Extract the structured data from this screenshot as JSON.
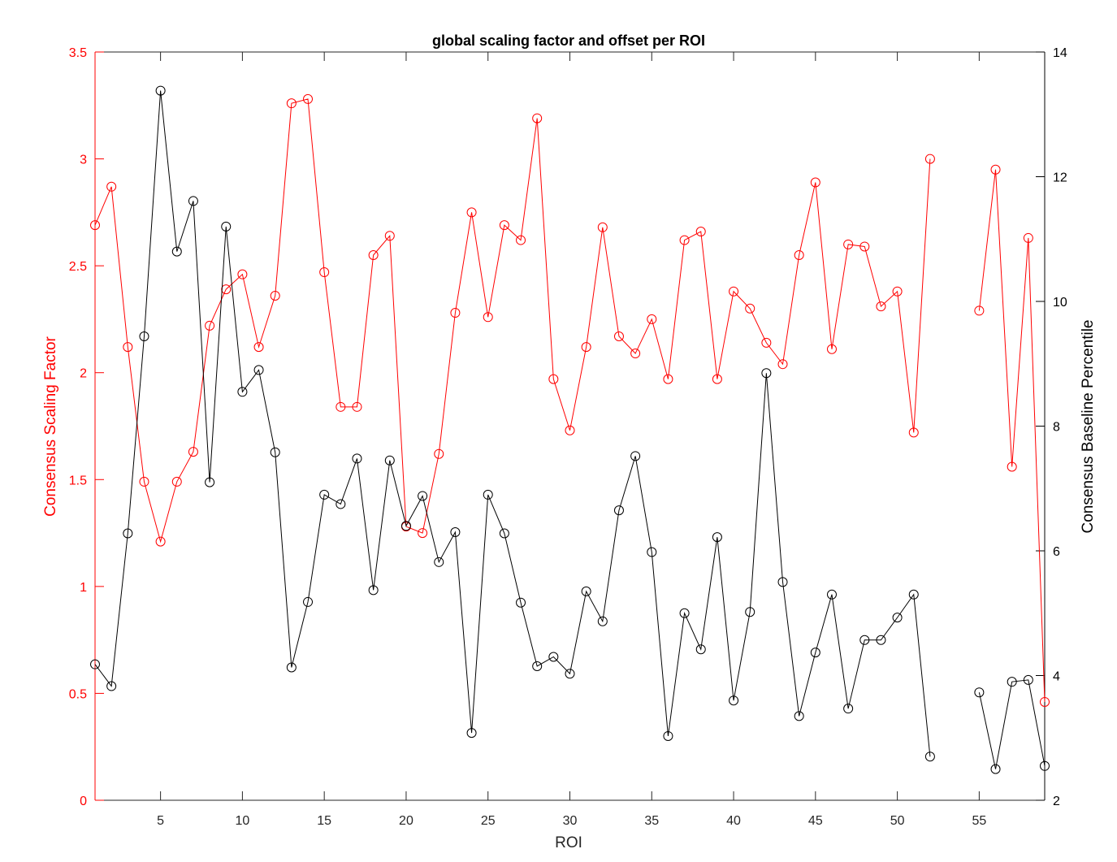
{
  "chart_data": {
    "type": "line",
    "title": "global scaling factor and offset per ROI",
    "xlabel": "ROI",
    "xlim": [
      1,
      59
    ],
    "x_ticks": [
      5,
      10,
      15,
      20,
      25,
      30,
      35,
      40,
      45,
      50,
      55
    ],
    "x": [
      1,
      2,
      3,
      4,
      5,
      6,
      7,
      8,
      9,
      10,
      11,
      12,
      13,
      14,
      15,
      16,
      17,
      18,
      19,
      20,
      21,
      22,
      23,
      24,
      25,
      26,
      27,
      28,
      29,
      30,
      31,
      32,
      33,
      34,
      35,
      36,
      37,
      38,
      39,
      40,
      41,
      42,
      43,
      44,
      45,
      46,
      47,
      48,
      49,
      50,
      51,
      52,
      53,
      54,
      55,
      56,
      57,
      58,
      59
    ],
    "left_axis": {
      "label": "Consensus Scaling Factor",
      "color": "#ff0000",
      "ylim": [
        0,
        3.5
      ],
      "ticks": [
        0,
        0.5,
        1,
        1.5,
        2,
        2.5,
        3,
        3.5
      ],
      "tick_labels": [
        "0",
        "0.5",
        "1",
        "1.5",
        "2",
        "2.5",
        "3",
        "3.5"
      ]
    },
    "right_axis": {
      "label": "Consensus Baseline Percentile",
      "color": "#000000",
      "ylim": [
        2,
        14
      ],
      "ticks": [
        2,
        4,
        6,
        8,
        10,
        12,
        14
      ],
      "tick_labels": [
        "2",
        "4",
        "6",
        "8",
        "10",
        "12",
        "14"
      ]
    },
    "series": [
      {
        "axis": "left",
        "color": "#ff0000",
        "marker": "circle",
        "values": [
          2.69,
          2.87,
          2.12,
          1.49,
          1.21,
          1.49,
          1.63,
          2.22,
          2.39,
          2.46,
          2.12,
          2.36,
          3.26,
          3.28,
          2.47,
          1.84,
          1.84,
          2.55,
          2.64,
          1.28,
          1.25,
          1.62,
          2.28,
          2.75,
          2.26,
          2.69,
          2.62,
          3.19,
          1.97,
          1.73,
          2.12,
          2.68,
          2.17,
          2.09,
          2.25,
          1.97,
          2.62,
          2.66,
          1.97,
          2.38,
          2.3,
          2.14,
          2.04,
          2.55,
          2.89,
          2.11,
          2.6,
          2.59,
          2.31,
          2.38,
          1.72,
          3.0,
          null,
          null,
          2.29,
          2.95,
          1.56,
          2.63,
          0.46
        ]
      },
      {
        "axis": "right",
        "color": "#000000",
        "marker": "circle",
        "values": [
          4.18,
          3.83,
          6.28,
          9.44,
          13.38,
          10.8,
          11.61,
          7.1,
          11.2,
          8.55,
          8.9,
          7.58,
          4.13,
          5.18,
          6.9,
          6.75,
          7.48,
          5.37,
          7.45,
          6.4,
          6.88,
          5.82,
          6.3,
          3.08,
          6.9,
          6.28,
          5.17,
          4.15,
          4.3,
          4.03,
          5.35,
          4.87,
          6.65,
          7.52,
          5.98,
          3.03,
          5.0,
          4.42,
          6.22,
          3.6,
          5.02,
          8.85,
          5.5,
          3.35,
          4.37,
          5.3,
          3.47,
          4.57,
          4.57,
          4.93,
          5.3,
          2.7,
          null,
          null,
          3.73,
          2.5,
          3.9,
          3.93,
          2.55
        ]
      }
    ]
  }
}
